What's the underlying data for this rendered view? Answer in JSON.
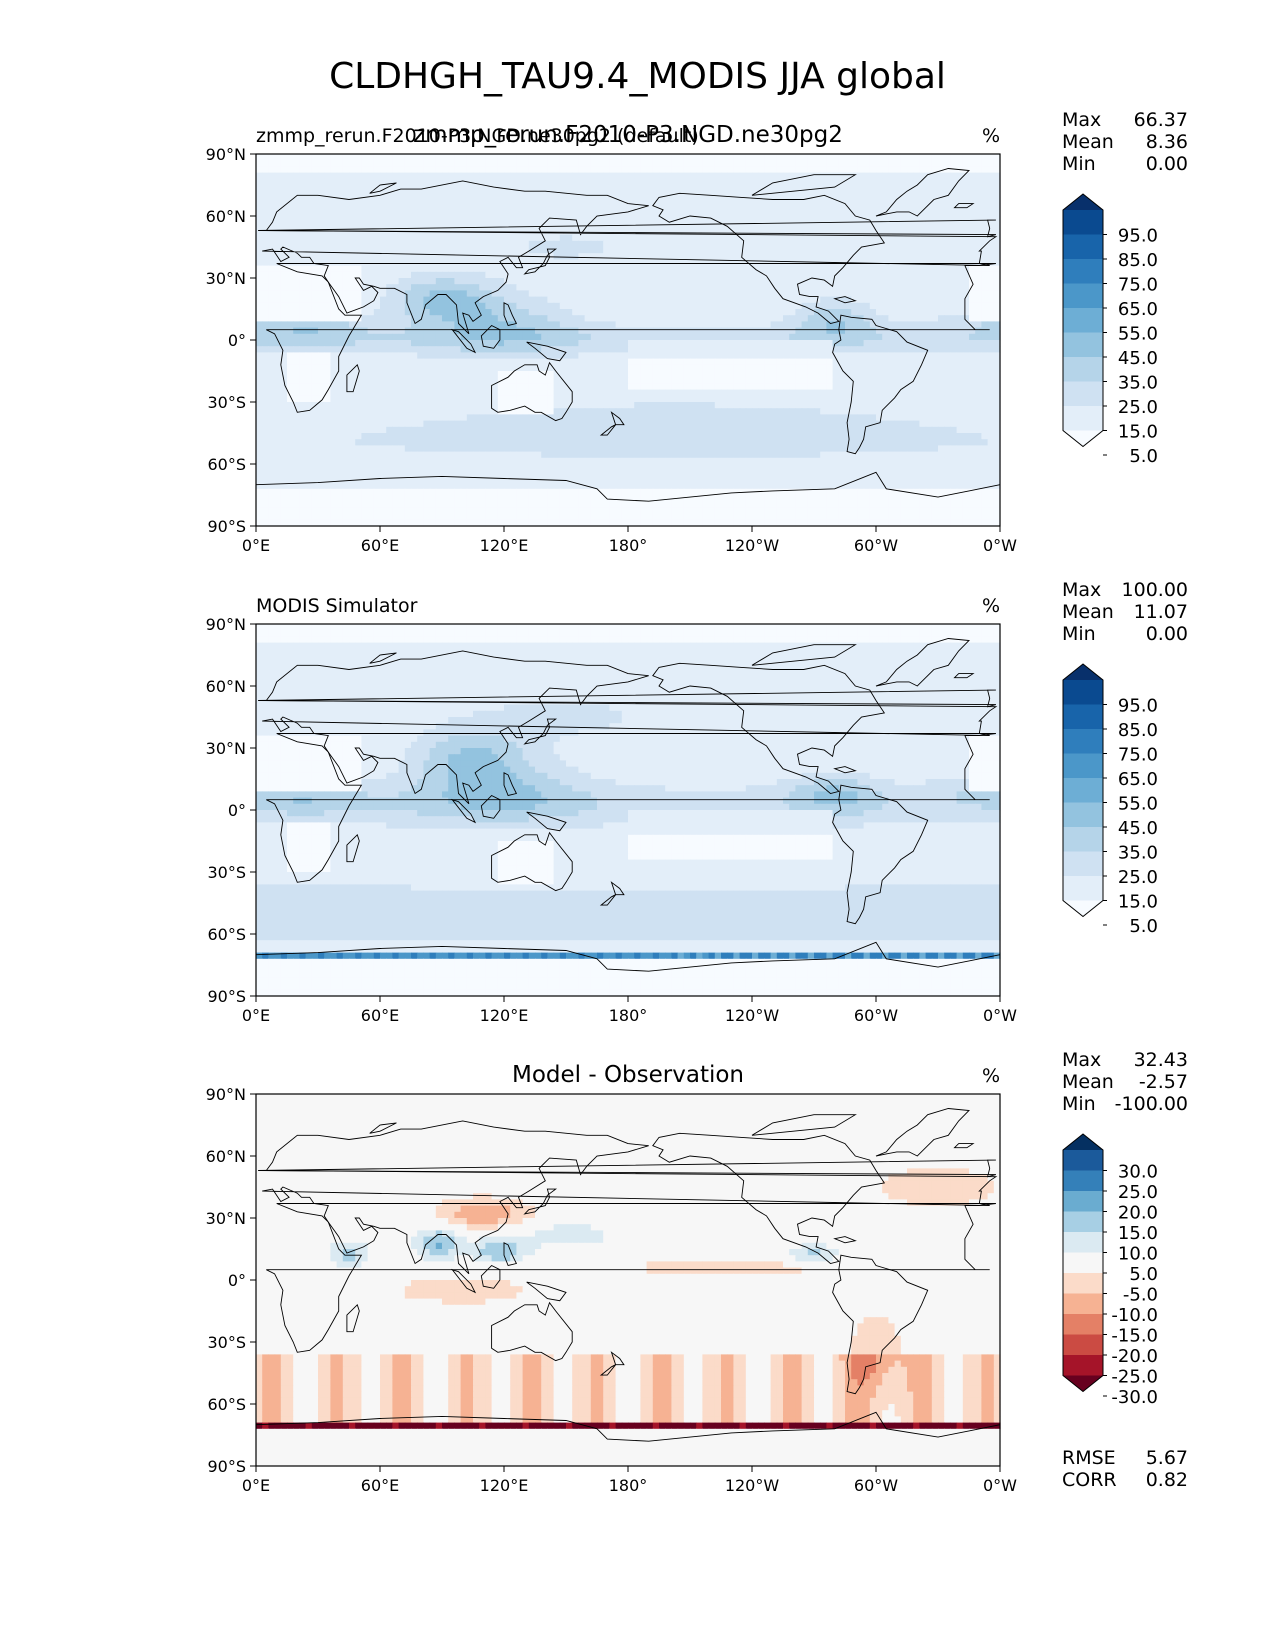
{
  "title": "CLDHGH_TAU9.4_MODIS JJA global",
  "lat_ticks": [
    "90°N",
    "60°N",
    "30°N",
    "0°",
    "30°S",
    "60°S",
    "90°S"
  ],
  "lon_ticks": [
    "0°E",
    "60°E",
    "120°E",
    "180°",
    "120°W",
    "60°W",
    "0°W"
  ],
  "panels": [
    {
      "title_left": "zmmp_rerun.F2010-P3.NGD.ne30pg2 (default)",
      "title_center": "zmmp_rerun.F2010-P3.NGD.ne30pg2",
      "units": "%",
      "stats": [
        {
          "label": "Max",
          "value": "66.37"
        },
        {
          "label": "Mean",
          "value": "8.36"
        },
        {
          "label": "Min",
          "value": "0.00"
        }
      ],
      "colorbar": {
        "labels": [
          "95.0",
          "85.0",
          "75.0",
          "65.0",
          "55.0",
          "45.0",
          "35.0",
          "25.0",
          "15.0",
          "5.0"
        ],
        "colors": [
          "#f7fbff",
          "#e3eef9",
          "#cfe1f2",
          "#b5d4e9",
          "#93c3df",
          "#6daed5",
          "#4b97c9",
          "#2f7ebc",
          "#1864aa",
          "#0a4a90",
          "#08306b"
        ]
      }
    },
    {
      "title_left": "MODIS Simulator",
      "title_center": "",
      "units": "%",
      "stats": [
        {
          "label": "Max",
          "value": "100.00"
        },
        {
          "label": "Mean",
          "value": "11.07"
        },
        {
          "label": "Min",
          "value": "0.00"
        }
      ],
      "colorbar": {
        "labels": [
          "95.0",
          "85.0",
          "75.0",
          "65.0",
          "55.0",
          "45.0",
          "35.0",
          "25.0",
          "15.0",
          "5.0"
        ],
        "colors": [
          "#f7fbff",
          "#e3eef9",
          "#cfe1f2",
          "#b5d4e9",
          "#93c3df",
          "#6daed5",
          "#4b97c9",
          "#2f7ebc",
          "#1864aa",
          "#0a4a90",
          "#08306b"
        ]
      }
    },
    {
      "title_left": "",
      "title_center": "Model - Observation",
      "units": "%",
      "stats": [
        {
          "label": "Max",
          "value": "32.43"
        },
        {
          "label": "Mean",
          "value": "-2.57"
        },
        {
          "label": "Min",
          "value": "-100.00"
        }
      ],
      "colorbar": {
        "labels": [
          "30.0",
          "25.0",
          "20.0",
          "15.0",
          "10.0",
          "5.0",
          "-5.0",
          "-10.0",
          "-15.0",
          "-20.0",
          "-25.0",
          "-30.0"
        ],
        "colors": [
          "#67001f",
          "#a51429",
          "#cb4b43",
          "#e48066",
          "#f6b293",
          "#fbdbc9",
          "#f7f7f7",
          "#dbeaf2",
          "#a7cfe4",
          "#6aacd0",
          "#3480b9",
          "#1b5a9b",
          "#053061"
        ]
      },
      "metrics": [
        {
          "label": "RMSE",
          "value": "5.67"
        },
        {
          "label": "CORR",
          "value": "0.82"
        }
      ]
    }
  ],
  "chart_data": [
    {
      "type": "heatmap",
      "title": "zmmp_rerun.F2010-P3.NGD.ne30pg2",
      "variable": "CLDHGH_TAU9.4_MODIS",
      "units": "%",
      "xlim": [
        0,
        360
      ],
      "ylim": [
        -90,
        90
      ],
      "levels": [
        5,
        15,
        25,
        35,
        45,
        55,
        65,
        75,
        85,
        95
      ],
      "max": 66.37,
      "mean": 8.36,
      "min": 0.0,
      "features": [
        {
          "lon": [
            70,
            110
          ],
          "lat": [
            10,
            30
          ],
          "value": 45
        },
        {
          "lon": [
            0,
            45
          ],
          "lat": [
            0,
            12
          ],
          "value": 30
        },
        {
          "lon": [
            270,
            300
          ],
          "lat": [
            0,
            15
          ],
          "value": 40
        },
        {
          "lon": [
            180,
            250
          ],
          "lat": [
            0,
            10
          ],
          "value": 15
        },
        {
          "lon": [
            0,
            360
          ],
          "lat": [
            -60,
            -30
          ],
          "value": 15
        },
        {
          "lon": [
            100,
            200
          ],
          "lat": [
            35,
            60
          ],
          "value": 15
        }
      ]
    },
    {
      "type": "heatmap",
      "title": "MODIS Simulator",
      "variable": "CLDHGH_TAU9.4_MODIS",
      "units": "%",
      "xlim": [
        0,
        360
      ],
      "ylim": [
        -90,
        90
      ],
      "levels": [
        5,
        15,
        25,
        35,
        45,
        55,
        65,
        75,
        85,
        95
      ],
      "max": 100.0,
      "mean": 11.07,
      "min": 0.0,
      "features": [
        {
          "lon": [
            80,
            120
          ],
          "lat": [
            15,
            40
          ],
          "value": 40
        },
        {
          "lon": [
            0,
            45
          ],
          "lat": [
            0,
            12
          ],
          "value": 25
        },
        {
          "lon": [
            270,
            300
          ],
          "lat": [
            0,
            15
          ],
          "value": 35
        },
        {
          "lon": [
            0,
            360
          ],
          "lat": [
            -70,
            -30
          ],
          "value": 20
        },
        {
          "lon": [
            0,
            360
          ],
          "lat": [
            -72,
            -69
          ],
          "value": 60
        }
      ]
    },
    {
      "type": "heatmap",
      "title": "Model - Observation",
      "variable": "CLDHGH_TAU9.4_MODIS",
      "units": "%",
      "xlim": [
        0,
        360
      ],
      "ylim": [
        -90,
        90
      ],
      "levels": [
        -30,
        -25,
        -20,
        -15,
        -10,
        -5,
        5,
        10,
        15,
        20,
        25,
        30
      ],
      "max": 32.43,
      "mean": -2.57,
      "min": -100.0,
      "rmse": 5.67,
      "corr": 0.82,
      "features": [
        {
          "lon": [
            90,
            130
          ],
          "lat": [
            25,
            40
          ],
          "value": -12
        },
        {
          "lon": [
            80,
            110
          ],
          "lat": [
            10,
            25
          ],
          "value": 15
        },
        {
          "lon": [
            260,
            290
          ],
          "lat": [
            5,
            20
          ],
          "value": 15
        },
        {
          "lon": [
            0,
            360
          ],
          "lat": [
            -70,
            -35
          ],
          "value": -8
        },
        {
          "lon": [
            0,
            360
          ],
          "lat": [
            -72,
            -69
          ],
          "value": -30
        }
      ]
    }
  ]
}
